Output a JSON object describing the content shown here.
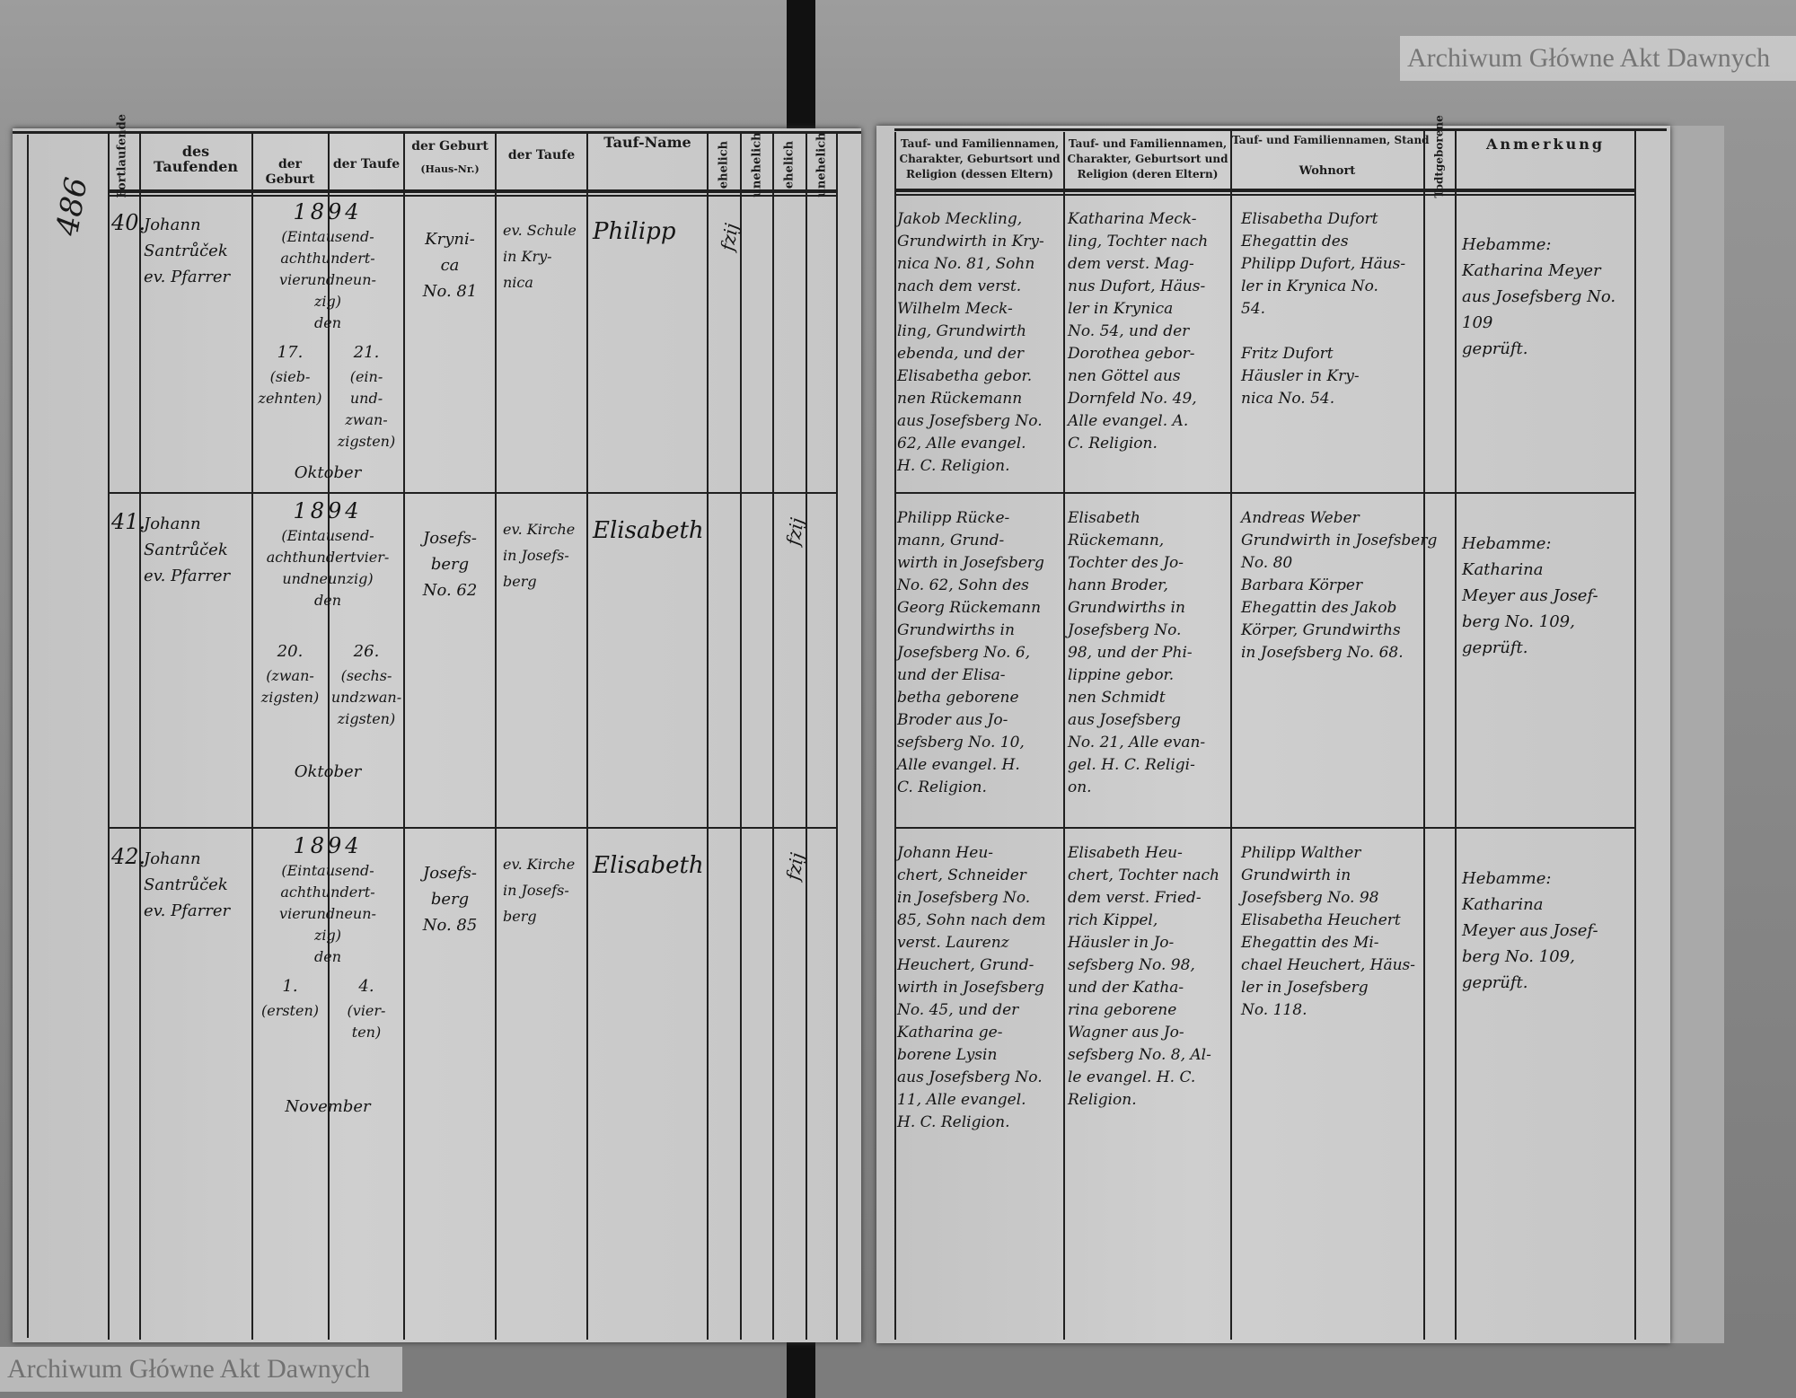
{
  "page_number_left": "486",
  "watermark": "Archiwum Główne Akt Dawnych",
  "colors": {
    "paper": "#c9c9c9",
    "ink": "#151515",
    "binding": "#111111",
    "scanner_bed": "#8c8c8c"
  },
  "left_headers": {
    "serial": "Fortlaufende",
    "baptizer": "des Taufenden",
    "birth_date": "der Geburt",
    "baptism_date": "der Taufe",
    "birth_place": "der Geburt",
    "birth_place_sub": "(Haus-Nr.)",
    "baptism_place": "der Taufe",
    "name": "Tauf-Name",
    "legit1": "ehelich",
    "illegit1": "unehelich",
    "legit2": "ehelich",
    "illegit2": "unehelich"
  },
  "right_headers": {
    "father": "Tauf- und Familiennamen, Charakter, Geburtsort und Religion (dessen Eltern)",
    "mother": "Tauf- und Familiennamen, Charakter, Geburtsort und Religion (deren Eltern)",
    "godparents": "Tauf- und Familiennamen, Stand",
    "godparents_sub": "Wohnort",
    "stillborn": "Todtgeborene",
    "remarks": "Anmerkung"
  },
  "entries": [
    {
      "number": "40.",
      "baptizer": "Johann\nSantrůček\nev. Pfarrer",
      "year": "1894",
      "year_words": "(Eintausend-\nachthundert-\nvierundneun-\nzig)\nden",
      "birth_day": "17.",
      "birth_day_words": "(sieb-\nzehnten)",
      "baptism_day": "21.",
      "baptism_day_words": "(ein-\nund-\nzwan-\nzigsten)",
      "month": "Oktober",
      "house": "Kryni-\nca\nNo. 81",
      "baptism_place": "ev. Schule\nin Kry-\nnica",
      "name": "Philipp",
      "legitimacy_mark": "fzij",
      "father": "Jakob Meckling,\nGrundwirth in Kry-\nnica No. 81, Sohn\nnach dem verst.\nWilhelm Meck-\nling, Grundwirth\nebenda, und der\nElisabetha gebor.\nnen Rückemann\naus Josefsberg No.\n62, Alle evangel.\nH. C. Religion.",
      "mother": "Katharina Meck-\nling, Tochter nach\ndem verst. Mag-\nnus Dufort, Häus-\nler in Krynica\nNo. 54, und der\nDorothea gebor-\nnen Göttel aus\nDornfeld No. 49,\nAlle evangel. A.\nC. Religion.",
      "godparents": "Elisabetha Dufort\nEhegattin des\nPhilipp Dufort, Häus-\nler in Krynica No.\n54.\n\nFritz Dufort\nHäusler in Kry-\nnica No. 54.",
      "remarks": "Hebamme:\nKatharina Meyer\naus Josefsberg No. 109\ngeprüft."
    },
    {
      "number": "41.",
      "baptizer": "Johann\nSantrůček\nev. Pfarrer",
      "year": "1894",
      "year_words": "(Eintausend-\nachthundertvier-\nundneunzig)\nden",
      "birth_day": "20.",
      "birth_day_words": "(zwan-\nzigsten)",
      "baptism_day": "26.",
      "baptism_day_words": "(sechs-\nundzwan-\nzigsten)",
      "month": "Oktober",
      "house": "Josefs-\nberg\nNo. 62",
      "baptism_place": "ev. Kirche\nin Josefs-\nberg",
      "name": "Elisabeth",
      "legitimacy_mark": "fzij",
      "father": "Philipp Rücke-\nmann, Grund-\nwirth in Josefsberg\nNo. 62, Sohn des\nGeorg Rückemann\nGrundwirths in\nJosefsberg No. 6,\nund der Elisa-\nbetha geborene\nBroder aus Jo-\nsefsberg No. 10,\nAlle evangel. H.\nC. Religion.",
      "mother": "Elisabeth\nRückemann,\nTochter des Jo-\nhann Broder,\nGrundwirths in\nJosefsberg No.\n98, und der Phi-\nlippine gebor.\nnen Schmidt\naus Josefsberg\nNo. 21, Alle evan-\ngel. H. C. Religi-\non.",
      "godparents": "Andreas Weber\nGrundwirth in Josefsberg\nNo. 80\nBarbara Körper\nEhegattin des Jakob\nKörper, Grundwirths\nin Josefsberg No. 68.",
      "remarks": "Hebamme:\nKatharina\nMeyer aus Josef-\nberg No. 109, geprüft."
    },
    {
      "number": "42.",
      "baptizer": "Johann\nSantrůček\nev. Pfarrer",
      "year": "1894",
      "year_words": "(Eintausend-\nachthundert-\nvierundneun-\nzig)\nden",
      "birth_day": "1.",
      "birth_day_words": "(ersten)",
      "baptism_day": "4.",
      "baptism_day_words": "(vier-\nten)",
      "month": "November",
      "house": "Josefs-\nberg\nNo. 85",
      "baptism_place": "ev. Kirche\nin Josefs-\nberg",
      "name": "Elisabeth",
      "legitimacy_mark": "fzij",
      "father": "Johann Heu-\nchert, Schneider\nin Josefsberg No.\n85, Sohn nach dem\nverst. Laurenz\nHeuchert, Grund-\nwirth in Josefsberg\nNo. 45, und der\nKatharina ge-\nborene Lysin\naus Josefsberg No.\n11, Alle evangel.\nH. C. Religion.",
      "mother": "Elisabeth Heu-\nchert, Tochter nach\ndem verst. Fried-\nrich Kippel,\nHäusler in Jo-\nsefsberg No. 98,\nund der Katha-\nrina geborene\nWagner aus Jo-\nsefsberg No. 8, Al-\nle evangel. H. C.\nReligion.",
      "godparents": "Philipp Walther\nGrundwirth in\nJosefsberg No. 98\nElisabetha Heuchert\nEhegattin des Mi-\nchael Heuchert, Häus-\nler in Josefsberg\nNo. 118.",
      "remarks": "Hebamme:\nKatharina\nMeyer aus Josef-\nberg No. 109, geprüft."
    }
  ]
}
